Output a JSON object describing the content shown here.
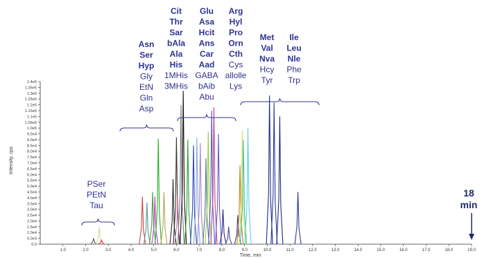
{
  "chart_data": {
    "type": "line",
    "title": "",
    "xlabel": "Time, min",
    "ylabel": "Intensity, cps",
    "xlim": [
      0,
      19
    ],
    "ylim": [
      0,
      140000
    ],
    "x_ticks": [
      "1.0",
      "2.0",
      "3.0",
      "4.0",
      "5.0",
      "6.0",
      "7.0",
      "8.0",
      "9.0",
      "10.0",
      "11.0",
      "12.0",
      "13.0",
      "14.0",
      "15.0",
      "16.0",
      "17.0",
      "18.0",
      "19.0"
    ],
    "y_ticks": [
      "0.0",
      "5.0e3",
      "1.0e4",
      "1.5e4",
      "2.0e4",
      "2.5e4",
      "3.0e4",
      "3.5e4",
      "4.0e4",
      "4.5e4",
      "5.0e4",
      "5.5e4",
      "6.0e4",
      "6.5e4",
      "7.0e4",
      "7.5e4",
      "8.0e4",
      "8.5e4",
      "9.0e4",
      "9.5e4",
      "1.0e5",
      "1.05e5",
      "1.1e5",
      "1.15e5",
      "1.2e5",
      "1.25e5",
      "1.3e5",
      "1.35e5",
      "1.4e5"
    ],
    "peaks": [
      {
        "t": 2.35,
        "h": 5000,
        "color": "#555555"
      },
      {
        "t": 2.6,
        "h": 15000,
        "color": "#c8e0a8"
      },
      {
        "t": 2.7,
        "h": 3500,
        "color": "#e04040"
      },
      {
        "t": 4.5,
        "h": 41000,
        "color": "#d04040"
      },
      {
        "t": 4.7,
        "h": 36000,
        "color": "#5a9a9a"
      },
      {
        "t": 4.95,
        "h": 45000,
        "color": "#4a9a4a"
      },
      {
        "t": 5.05,
        "h": 41000,
        "color": "#c040c0"
      },
      {
        "t": 5.2,
        "h": 91000,
        "color": "#22b022"
      },
      {
        "t": 5.45,
        "h": 45000,
        "color": "#c0a050"
      },
      {
        "t": 5.85,
        "h": 56000,
        "color": "#2a2a2a"
      },
      {
        "t": 6.0,
        "h": 92000,
        "color": "#333333"
      },
      {
        "t": 6.05,
        "h": 42000,
        "color": "#d080b0"
      },
      {
        "t": 6.2,
        "h": 120000,
        "color": "#7a7a7a"
      },
      {
        "t": 6.3,
        "h": 132000,
        "color": "#111111"
      },
      {
        "t": 6.5,
        "h": 90000,
        "color": "#30a030"
      },
      {
        "t": 6.75,
        "h": 85000,
        "color": "#3040c0"
      },
      {
        "t": 6.9,
        "h": 92000,
        "color": "#80b0d8"
      },
      {
        "t": 7.05,
        "h": 87000,
        "color": "#b080c0"
      },
      {
        "t": 7.3,
        "h": 74000,
        "color": "#4a7aa0"
      },
      {
        "t": 7.4,
        "h": 97000,
        "color": "#a0c840"
      },
      {
        "t": 7.55,
        "h": 115000,
        "color": "#5060b0"
      },
      {
        "t": 7.65,
        "h": 118000,
        "color": "#c040a0"
      },
      {
        "t": 7.85,
        "h": 95000,
        "color": "#6a5acd"
      },
      {
        "t": 8.05,
        "h": 30000,
        "color": "#2a2a7a"
      },
      {
        "t": 8.3,
        "h": 15000,
        "color": "#4a4a8a"
      },
      {
        "t": 8.7,
        "h": 25000,
        "color": "#3a3a9a"
      },
      {
        "t": 8.8,
        "h": 68000,
        "color": "#c08020"
      },
      {
        "t": 8.9,
        "h": 98000,
        "color": "#e0e040"
      },
      {
        "t": 8.95,
        "h": 90000,
        "color": "#40c0c0"
      },
      {
        "t": 9.15,
        "h": 100000,
        "color": "#60d0e0"
      },
      {
        "t": 10.1,
        "h": 128000,
        "color": "#1a2a8a"
      },
      {
        "t": 10.3,
        "h": 122000,
        "color": "#2a3aa0"
      },
      {
        "t": 10.55,
        "h": 110000,
        "color": "#1a2a7a"
      },
      {
        "t": 11.35,
        "h": 45000,
        "color": "#2a3a9a"
      }
    ],
    "annotations": [
      {
        "labels": [
          "PSer",
          "PEtN",
          "Tau"
        ],
        "color": "#2e3192",
        "bold": false,
        "t_from": 2.05,
        "t_to": 3.25
      },
      {
        "labels": [
          "Asn",
          "Ser",
          "Hyp",
          "Gly",
          "EtN",
          "Gln",
          "Asp"
        ],
        "color": "#2e3192",
        "bold_count": 3,
        "t_from": 3.4,
        "t_to": 5.75
      },
      {
        "labels": [
          "Cit",
          "Thr",
          "Sar",
          "bAla",
          "Ala",
          "His",
          "1MHis",
          "3MHis"
        ],
        "color": "#2e3192",
        "bold_count": 6,
        "t_from": 5.85,
        "t_to": 8.15
      },
      {
        "labels": [
          "Glu",
          "Asa",
          "Hcit",
          "Ans",
          "Car",
          "Aad",
          "GABA",
          "bAib",
          "Abu"
        ],
        "color": "#2e3192",
        "bold_count": 6,
        "t_from": 5.85,
        "t_to": 8.15
      },
      {
        "labels": [
          "Arg",
          "Hyl",
          "Pro",
          "Orn",
          "Cth",
          "Cys",
          "allolle",
          "Lys"
        ],
        "color": "#2e3192",
        "bold_count": 5,
        "t_from": 5.85,
        "t_to": 8.15
      },
      {
        "labels": [
          "Met",
          "Val",
          "Nva",
          "Hcy",
          "Tyr"
        ],
        "color": "#2e3192",
        "bold_count": 3,
        "t_from": 8.55,
        "t_to": 12.75
      },
      {
        "labels": [
          "Ile",
          "Leu",
          "Nle",
          "Phe",
          "Trp"
        ],
        "color": "#2e3192",
        "bold_count": 3,
        "t_from": 8.55,
        "t_to": 12.75
      }
    ],
    "end_marker": {
      "label_line1": "18",
      "label_line2": "min",
      "t": 19.0
    }
  }
}
